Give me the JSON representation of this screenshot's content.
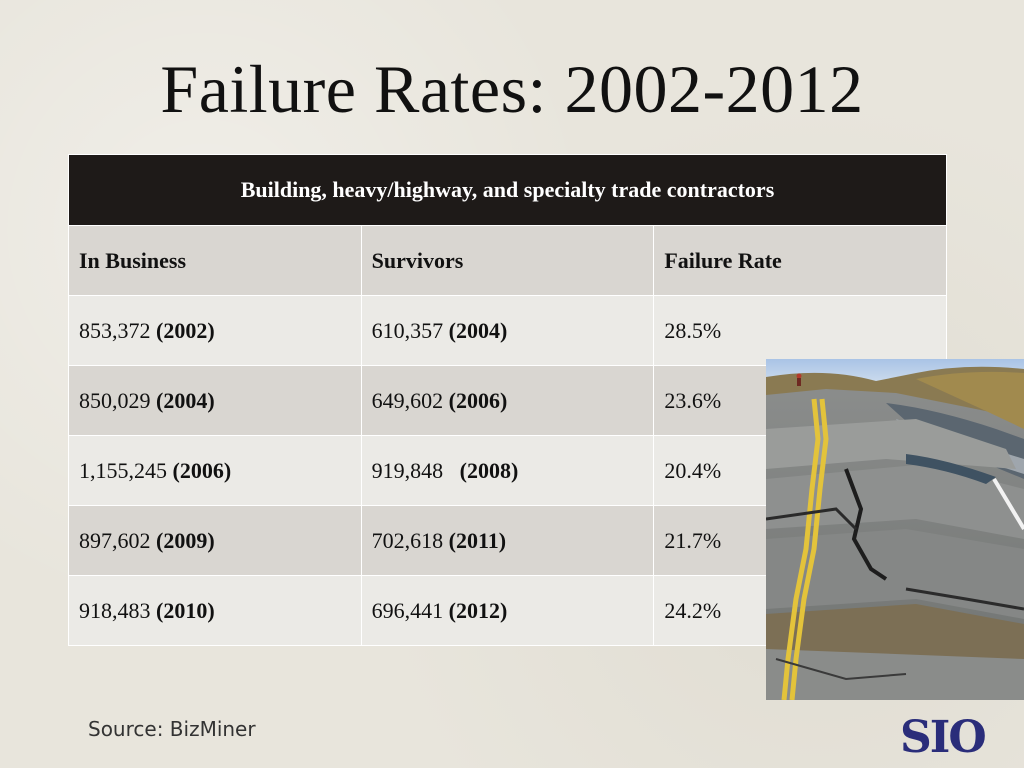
{
  "title": "Failure Rates: 2002-2012",
  "table": {
    "banner": "Building, heavy/highway, and specialty trade contractors",
    "headers": [
      "In Business",
      "Survivors",
      "Failure Rate"
    ],
    "rows": [
      {
        "in_business": "853,372",
        "in_year": "(2002)",
        "survivors": "610,357",
        "surv_year": "(2004)",
        "rate": "28.5%"
      },
      {
        "in_business": "850,029",
        "in_year": "(2004)",
        "survivors": "649,602",
        "surv_year": "(2006)",
        "rate": "23.6%"
      },
      {
        "in_business": "1,155,245",
        "in_year": "(2006)",
        "survivors": "919,848",
        "surv_year": "(2008)",
        "rate": "20.4%"
      },
      {
        "in_business": "897,602",
        "in_year": "(2009)",
        "survivors": "702,618",
        "surv_year": "(2011)",
        "rate": "21.7%"
      },
      {
        "in_business": "918,483",
        "in_year": "(2010)",
        "survivors": "696,441",
        "surv_year": "(2012)",
        "rate": "24.2%"
      }
    ]
  },
  "source": "Source: BizMiner",
  "logo_text": "SIO",
  "logo_color": "#2a2d7a"
}
